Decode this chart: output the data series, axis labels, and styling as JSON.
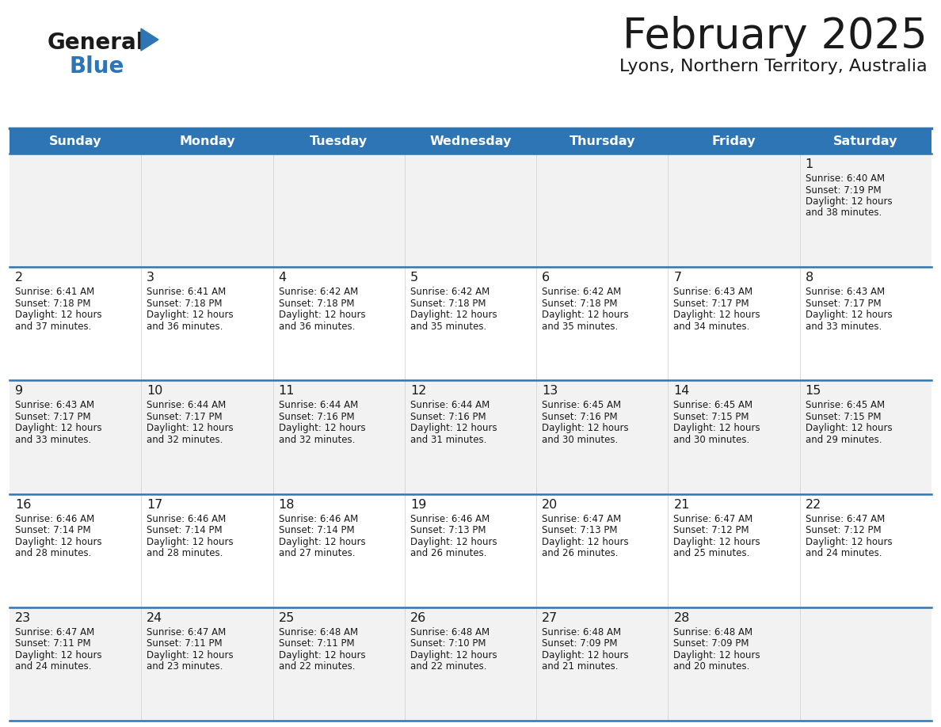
{
  "title": "February 2025",
  "subtitle": "Lyons, Northern Territory, Australia",
  "header_color": "#2E75B6",
  "header_text_color": "#FFFFFF",
  "day_names": [
    "Sunday",
    "Monday",
    "Tuesday",
    "Wednesday",
    "Thursday",
    "Friday",
    "Saturday"
  ],
  "background_color": "#FFFFFF",
  "cell_bg_even": "#F2F2F2",
  "cell_bg_odd": "#FFFFFF",
  "border_color": "#2E75B6",
  "text_color": "#1a1a1a",
  "days": [
    {
      "day": 1,
      "col": 6,
      "row": 0,
      "sunrise": "6:40 AM",
      "sunset": "7:19 PM",
      "daylight": "12 hours",
      "daylight2": "and 38 minutes."
    },
    {
      "day": 2,
      "col": 0,
      "row": 1,
      "sunrise": "6:41 AM",
      "sunset": "7:18 PM",
      "daylight": "12 hours",
      "daylight2": "and 37 minutes."
    },
    {
      "day": 3,
      "col": 1,
      "row": 1,
      "sunrise": "6:41 AM",
      "sunset": "7:18 PM",
      "daylight": "12 hours",
      "daylight2": "and 36 minutes."
    },
    {
      "day": 4,
      "col": 2,
      "row": 1,
      "sunrise": "6:42 AM",
      "sunset": "7:18 PM",
      "daylight": "12 hours",
      "daylight2": "and 36 minutes."
    },
    {
      "day": 5,
      "col": 3,
      "row": 1,
      "sunrise": "6:42 AM",
      "sunset": "7:18 PM",
      "daylight": "12 hours",
      "daylight2": "and 35 minutes."
    },
    {
      "day": 6,
      "col": 4,
      "row": 1,
      "sunrise": "6:42 AM",
      "sunset": "7:18 PM",
      "daylight": "12 hours",
      "daylight2": "and 35 minutes."
    },
    {
      "day": 7,
      "col": 5,
      "row": 1,
      "sunrise": "6:43 AM",
      "sunset": "7:17 PM",
      "daylight": "12 hours",
      "daylight2": "and 34 minutes."
    },
    {
      "day": 8,
      "col": 6,
      "row": 1,
      "sunrise": "6:43 AM",
      "sunset": "7:17 PM",
      "daylight": "12 hours",
      "daylight2": "and 33 minutes."
    },
    {
      "day": 9,
      "col": 0,
      "row": 2,
      "sunrise": "6:43 AM",
      "sunset": "7:17 PM",
      "daylight": "12 hours",
      "daylight2": "and 33 minutes."
    },
    {
      "day": 10,
      "col": 1,
      "row": 2,
      "sunrise": "6:44 AM",
      "sunset": "7:17 PM",
      "daylight": "12 hours",
      "daylight2": "and 32 minutes."
    },
    {
      "day": 11,
      "col": 2,
      "row": 2,
      "sunrise": "6:44 AM",
      "sunset": "7:16 PM",
      "daylight": "12 hours",
      "daylight2": "and 32 minutes."
    },
    {
      "day": 12,
      "col": 3,
      "row": 2,
      "sunrise": "6:44 AM",
      "sunset": "7:16 PM",
      "daylight": "12 hours",
      "daylight2": "and 31 minutes."
    },
    {
      "day": 13,
      "col": 4,
      "row": 2,
      "sunrise": "6:45 AM",
      "sunset": "7:16 PM",
      "daylight": "12 hours",
      "daylight2": "and 30 minutes."
    },
    {
      "day": 14,
      "col": 5,
      "row": 2,
      "sunrise": "6:45 AM",
      "sunset": "7:15 PM",
      "daylight": "12 hours",
      "daylight2": "and 30 minutes."
    },
    {
      "day": 15,
      "col": 6,
      "row": 2,
      "sunrise": "6:45 AM",
      "sunset": "7:15 PM",
      "daylight": "12 hours",
      "daylight2": "and 29 minutes."
    },
    {
      "day": 16,
      "col": 0,
      "row": 3,
      "sunrise": "6:46 AM",
      "sunset": "7:14 PM",
      "daylight": "12 hours",
      "daylight2": "and 28 minutes."
    },
    {
      "day": 17,
      "col": 1,
      "row": 3,
      "sunrise": "6:46 AM",
      "sunset": "7:14 PM",
      "daylight": "12 hours",
      "daylight2": "and 28 minutes."
    },
    {
      "day": 18,
      "col": 2,
      "row": 3,
      "sunrise": "6:46 AM",
      "sunset": "7:14 PM",
      "daylight": "12 hours",
      "daylight2": "and 27 minutes."
    },
    {
      "day": 19,
      "col": 3,
      "row": 3,
      "sunrise": "6:46 AM",
      "sunset": "7:13 PM",
      "daylight": "12 hours",
      "daylight2": "and 26 minutes."
    },
    {
      "day": 20,
      "col": 4,
      "row": 3,
      "sunrise": "6:47 AM",
      "sunset": "7:13 PM",
      "daylight": "12 hours",
      "daylight2": "and 26 minutes."
    },
    {
      "day": 21,
      "col": 5,
      "row": 3,
      "sunrise": "6:47 AM",
      "sunset": "7:12 PM",
      "daylight": "12 hours",
      "daylight2": "and 25 minutes."
    },
    {
      "day": 22,
      "col": 6,
      "row": 3,
      "sunrise": "6:47 AM",
      "sunset": "7:12 PM",
      "daylight": "12 hours",
      "daylight2": "and 24 minutes."
    },
    {
      "day": 23,
      "col": 0,
      "row": 4,
      "sunrise": "6:47 AM",
      "sunset": "7:11 PM",
      "daylight": "12 hours",
      "daylight2": "and 24 minutes."
    },
    {
      "day": 24,
      "col": 1,
      "row": 4,
      "sunrise": "6:47 AM",
      "sunset": "7:11 PM",
      "daylight": "12 hours",
      "daylight2": "and 23 minutes."
    },
    {
      "day": 25,
      "col": 2,
      "row": 4,
      "sunrise": "6:48 AM",
      "sunset": "7:11 PM",
      "daylight": "12 hours",
      "daylight2": "and 22 minutes."
    },
    {
      "day": 26,
      "col": 3,
      "row": 4,
      "sunrise": "6:48 AM",
      "sunset": "7:10 PM",
      "daylight": "12 hours",
      "daylight2": "and 22 minutes."
    },
    {
      "day": 27,
      "col": 4,
      "row": 4,
      "sunrise": "6:48 AM",
      "sunset": "7:09 PM",
      "daylight": "12 hours",
      "daylight2": "and 21 minutes."
    },
    {
      "day": 28,
      "col": 5,
      "row": 4,
      "sunrise": "6:48 AM",
      "sunset": "7:09 PM",
      "daylight": "12 hours",
      "daylight2": "and 20 minutes."
    }
  ],
  "num_rows": 5,
  "num_cols": 7,
  "fig_width": 11.88,
  "fig_height": 9.18,
  "dpi": 100
}
